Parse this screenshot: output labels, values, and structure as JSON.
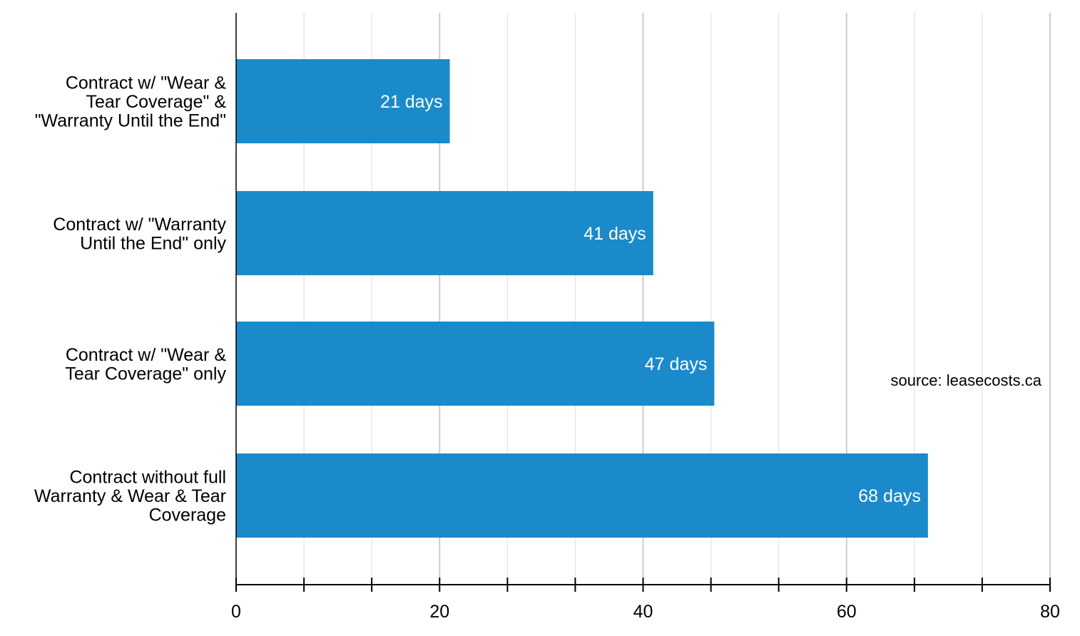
{
  "chart_data": {
    "type": "bar",
    "orientation": "horizontal",
    "categories": [
      [
        "Contract w/ \"Wear &",
        "Tear Coverage\" &",
        "\"Warranty Until the End\""
      ],
      [
        "Contract w/ \"Warranty",
        "Until the End\" only"
      ],
      [
        "Contract w/ \"Wear &",
        "Tear Coverage\" only"
      ],
      [
        "Contract without full",
        "Warranty & Wear & Tear",
        "Coverage"
      ]
    ],
    "values": [
      21,
      41,
      47,
      68
    ],
    "data_labels": [
      "21 days",
      "41 days",
      "47 days",
      "68 days"
    ],
    "title": "",
    "xlabel": "",
    "ylabel": "",
    "xlim": [
      0,
      80
    ],
    "major_ticks": [
      0,
      20,
      40,
      60,
      80
    ],
    "minor_ticks": [
      6.67,
      13.33,
      26.67,
      33.33,
      46.67,
      53.33,
      66.67,
      73.33
    ],
    "tick_labels": [
      "0",
      "20",
      "40",
      "60",
      "80"
    ],
    "grid": true,
    "legend": "none",
    "annotation": "source: leasecosts.ca",
    "colors": {
      "bar": "#1a8acb",
      "major_grid": "#cccccc",
      "minor_grid": "#e6e6e6",
      "axis": "#000000"
    }
  }
}
